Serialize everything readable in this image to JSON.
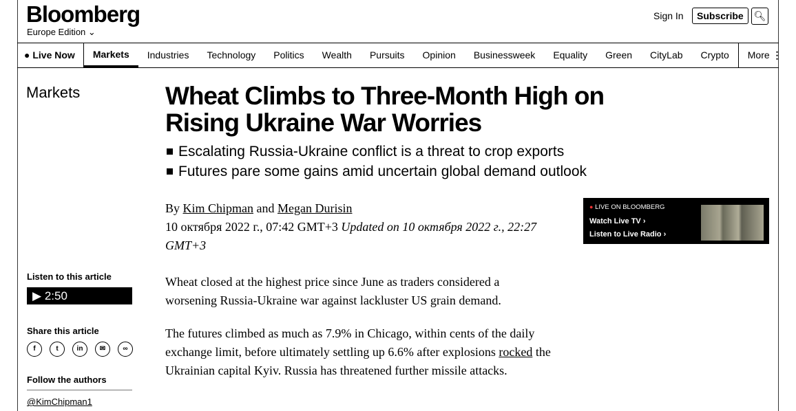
{
  "header": {
    "logo": "Bloomberg",
    "edition": "Europe Edition",
    "sign_in": "Sign In",
    "subscribe": "Subscribe"
  },
  "nav": {
    "live": "Live Now",
    "items": [
      "Markets",
      "Industries",
      "Technology",
      "Politics",
      "Wealth",
      "Pursuits",
      "Opinion",
      "Businessweek",
      "Equality",
      "Green",
      "CityLab",
      "Crypto"
    ],
    "more": "More"
  },
  "section": "Markets",
  "article": {
    "title": "Wheat Climbs to Three-Month High on Rising Ukraine War Worries",
    "bullets": [
      "Escalating Russia-Ukraine conflict is a threat to crop exports",
      "Futures pare some gains amid uncertain global demand outlook"
    ],
    "by": "By",
    "author1": "Kim Chipman",
    "and": "and",
    "author2": "Megan Durisin",
    "date": "10 октября 2022 г., 07:42 GMT+3",
    "updated": "Updated on 10 октября 2022 г., 22:27 GMT+3",
    "p1": "Wheat closed at the highest price since June as traders considered a worsening Russia-Ukraine war against lackluster US grain demand.",
    "p2a": "The futures climbed as much as 7.9% in Chicago, within cents of the daily exchange limit, before ultimately settling up 6.6% after explosions ",
    "p2link": "rocked",
    "p2b": " the Ukrainian capital Kyiv. Russia has threatened further missile attacks."
  },
  "live_box": {
    "label": "LIVE ON BLOOMBERG",
    "tv": "Watch Live TV",
    "radio": "Listen to Live Radio"
  },
  "sidebar": {
    "listen": "Listen to this article",
    "duration": "2:50",
    "share": "Share this article",
    "follow": "Follow the authors",
    "handle": "@KimChipman1"
  }
}
